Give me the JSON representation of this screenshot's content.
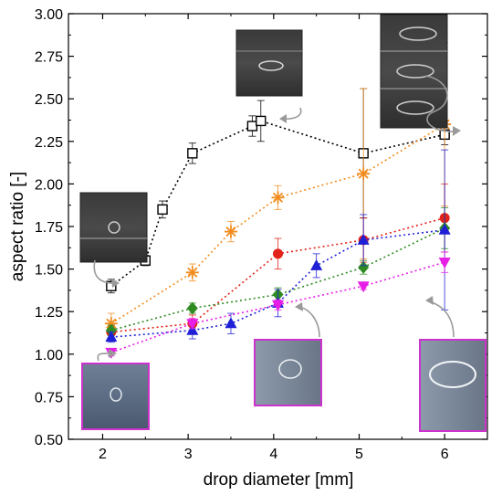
{
  "chart_data": {
    "type": "scatter",
    "title": "",
    "xlabel": "drop diameter [mm]",
    "ylabel": "aspect ratio [-]",
    "xlim": [
      1.6,
      6.5
    ],
    "ylim": [
      0.5,
      3.0
    ],
    "xticks": [
      "2",
      "3",
      "4",
      "5",
      "6"
    ],
    "yticks": [
      "0.50",
      "0.75",
      "1.00",
      "1.25",
      "1.50",
      "1.75",
      "2.00",
      "2.25",
      "2.50",
      "2.75",
      "3.00"
    ],
    "grid": false,
    "legend": "none",
    "series": [
      {
        "marker": "open-square",
        "color": "#000000",
        "line_style": "dotted",
        "x": [
          2.1,
          2.5,
          2.7,
          3.05,
          3.75,
          3.85,
          5.05,
          6.0
        ],
        "y": [
          1.4,
          1.55,
          1.85,
          2.18,
          2.34,
          2.37,
          2.18,
          2.29
        ],
        "err": [
          0.04,
          0.03,
          0.05,
          0.06,
          0.06,
          0.12,
          0.38,
          0.06
        ]
      },
      {
        "marker": "asterisk",
        "color": "#f28c1e",
        "line_style": "dotted",
        "x": [
          2.1,
          3.05,
          3.5,
          4.05,
          5.05,
          6.0
        ],
        "y": [
          1.18,
          1.48,
          1.72,
          1.92,
          2.06,
          2.35
        ],
        "err": [
          0.06,
          0.05,
          0.06,
          0.07,
          0.5,
          0.48
        ]
      },
      {
        "marker": "circle",
        "color": "#e2231a",
        "line_style": "dotted",
        "x": [
          2.1,
          3.05,
          4.05,
          5.05,
          6.0
        ],
        "y": [
          1.13,
          1.18,
          1.59,
          1.67,
          1.8
        ],
        "err": [
          0.04,
          0.05,
          0.09,
          0.13,
          0.2
        ]
      },
      {
        "marker": "diamond",
        "color": "#2e8b22",
        "line_style": "dotted",
        "x": [
          2.1,
          3.05,
          4.05,
          5.05,
          6.0
        ],
        "y": [
          1.14,
          1.27,
          1.35,
          1.51,
          1.74
        ],
        "err": [
          0.03,
          0.03,
          0.04,
          0.04,
          0.12
        ]
      },
      {
        "marker": "triangle-up",
        "color": "#1f1fd6",
        "line_style": "dotted",
        "x": [
          2.1,
          3.05,
          3.5,
          4.05,
          4.5,
          5.05,
          6.0
        ],
        "y": [
          1.1,
          1.14,
          1.18,
          1.3,
          1.52,
          1.67,
          1.73
        ],
        "err": [
          0.03,
          0.05,
          0.06,
          0.08,
          0.07,
          0.15,
          0.47
        ]
      },
      {
        "marker": "triangle-down",
        "color": "#e61ee6",
        "line_style": "dotted",
        "x": [
          2.1,
          3.05,
          4.05,
          5.05,
          6.0
        ],
        "y": [
          1.01,
          1.18,
          1.29,
          1.4,
          1.54
        ],
        "err": [
          0.02,
          0.03,
          0.03,
          0.02,
          0.06
        ]
      }
    ]
  },
  "insets": {
    "border_dark": "#222222",
    "border_magenta": "#cc33cc",
    "items": [
      {
        "kind": "drop-photo",
        "shape": "small"
      },
      {
        "kind": "drop-photo",
        "shape": "flat"
      },
      {
        "kind": "drop-photo",
        "shape": "triple"
      },
      {
        "kind": "drop-photo",
        "shape": "small-magenta"
      },
      {
        "kind": "drop-photo",
        "shape": "medium-magenta"
      },
      {
        "kind": "drop-photo",
        "shape": "large-magenta"
      }
    ]
  }
}
